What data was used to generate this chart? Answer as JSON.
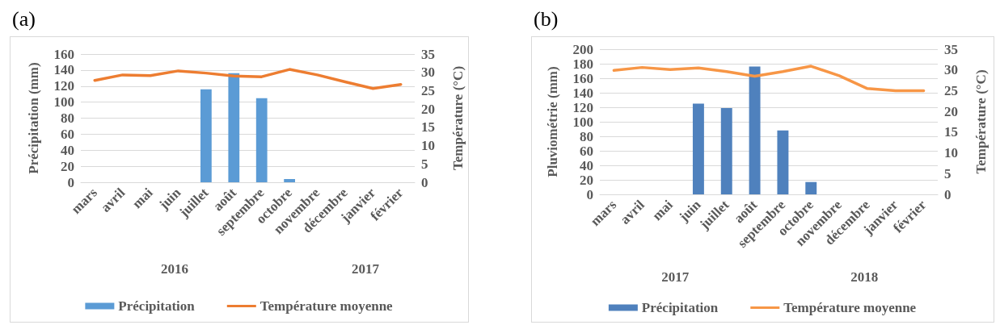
{
  "chart_data": [
    {
      "type": "bar",
      "title": "(a)",
      "ylabel": "Précipitation (mm)",
      "y2label": "Température (°C)",
      "categories": [
        "mars",
        "avril",
        "mai",
        "juin",
        "juillet",
        "août",
        "septembre",
        "octobre",
        "novembre",
        "décembre",
        "janvier",
        "février"
      ],
      "series": [
        {
          "name": "Précipitation",
          "color": "#5b9bd5",
          "values": [
            0,
            0,
            0,
            0,
            116,
            136,
            105,
            4,
            0,
            0,
            0,
            0
          ]
        },
        {
          "name": "Température moyenne",
          "type": "line",
          "axis": "y2",
          "color": "#ed7d31",
          "values": [
            27.8,
            29.3,
            29.1,
            30.4,
            29.8,
            29.0,
            28.8,
            30.8,
            29.3,
            27.4,
            25.6,
            26.7
          ]
        }
      ],
      "ylim": [
        0,
        160
      ],
      "yticks": [
        0,
        20,
        40,
        60,
        80,
        100,
        120,
        140,
        160
      ],
      "y2lim": [
        0,
        35
      ],
      "y2ticks": [
        0,
        5,
        10,
        15,
        20,
        25,
        30,
        35
      ],
      "annotations": [
        "2016",
        "2017"
      ],
      "grid": "y",
      "legend": "bottom",
      "marker": "none",
      "line_style": "solid"
    },
    {
      "type": "bar",
      "title": "(b)",
      "ylabel": "Pluviométrie (mm)",
      "y2label": "Température (°C)",
      "categories": [
        "mars",
        "avril",
        "mai",
        "juin",
        "juillet",
        "août",
        "septembre",
        "octobre",
        "novembre",
        "décembre",
        "janvier",
        "février"
      ],
      "series": [
        {
          "name": "Précipitation",
          "color": "#4f81bd",
          "values": [
            0,
            0,
            0,
            125,
            119,
            176,
            88,
            17,
            0,
            0,
            0,
            0
          ]
        },
        {
          "name": "Température moyenne",
          "type": "line",
          "axis": "y2",
          "color": "#f79646",
          "values": [
            29.9,
            30.6,
            30.1,
            30.5,
            29.6,
            28.5,
            29.6,
            30.9,
            28.6,
            25.5,
            25.0,
            25.0
          ]
        }
      ],
      "ylim": [
        0,
        200
      ],
      "yticks": [
        0,
        20,
        40,
        60,
        80,
        100,
        120,
        140,
        160,
        180,
        200
      ],
      "y2lim": [
        0,
        35
      ],
      "y2ticks": [
        0,
        5,
        10,
        15,
        20,
        25,
        30,
        35
      ],
      "annotations": [
        "2017",
        "2018"
      ],
      "grid": "y",
      "legend": "bottom",
      "marker": "none",
      "line_style": "solid"
    }
  ]
}
